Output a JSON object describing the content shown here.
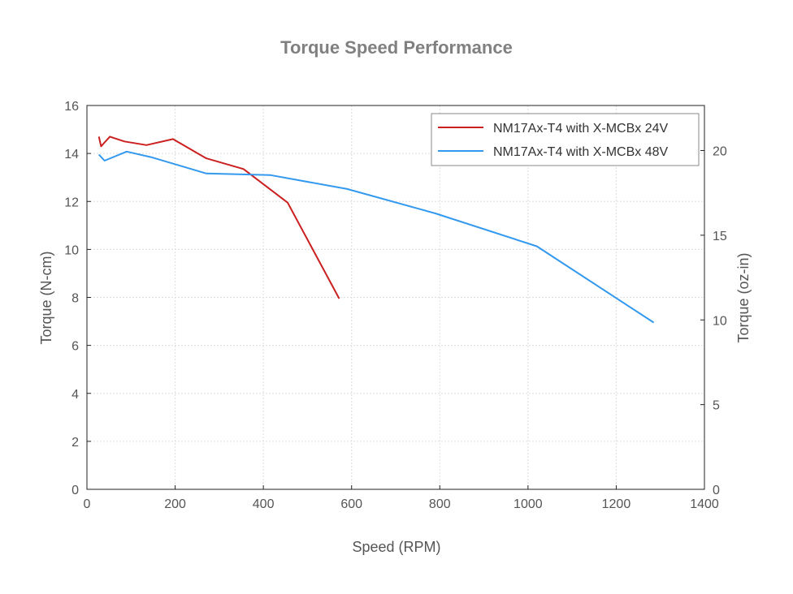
{
  "chart_data": {
    "type": "line",
    "title": "Torque Speed Performance",
    "xlabel": "Speed (RPM)",
    "ylabel": "Torque (N-cm)",
    "y2label": "Torque (oz-in)",
    "xlim": [
      0,
      1400
    ],
    "ylim": [
      0,
      16
    ],
    "y2lim": [
      0,
      22.66
    ],
    "x_ticks": [
      "0",
      "200",
      "400",
      "600",
      "800",
      "1000",
      "1200",
      "1400"
    ],
    "y_ticks": [
      "0",
      "2",
      "4",
      "6",
      "8",
      "10",
      "12",
      "14",
      "16"
    ],
    "y2_ticks": [
      "0",
      "5",
      "10",
      "15",
      "20"
    ],
    "grid": true,
    "legend_position": "top-right",
    "series": [
      {
        "name": "NM17Ax-T4 with X-MCBx 24V",
        "color": "#cc1f1f",
        "x": [
          27,
          32,
          52,
          85,
          135,
          195,
          270,
          355,
          455,
          572
        ],
        "y": [
          14.7,
          14.3,
          14.7,
          14.5,
          14.35,
          14.6,
          13.8,
          13.35,
          11.95,
          7.95
        ]
      },
      {
        "name": "NM17Ax-T4 with X-MCBx 48V",
        "color": "#3399ee",
        "x": [
          27,
          40,
          90,
          145,
          270,
          415,
          590,
          790,
          1020,
          1285
        ],
        "y": [
          13.95,
          13.7,
          14.08,
          13.85,
          13.17,
          13.1,
          12.52,
          11.5,
          10.13,
          6.95
        ]
      }
    ]
  }
}
